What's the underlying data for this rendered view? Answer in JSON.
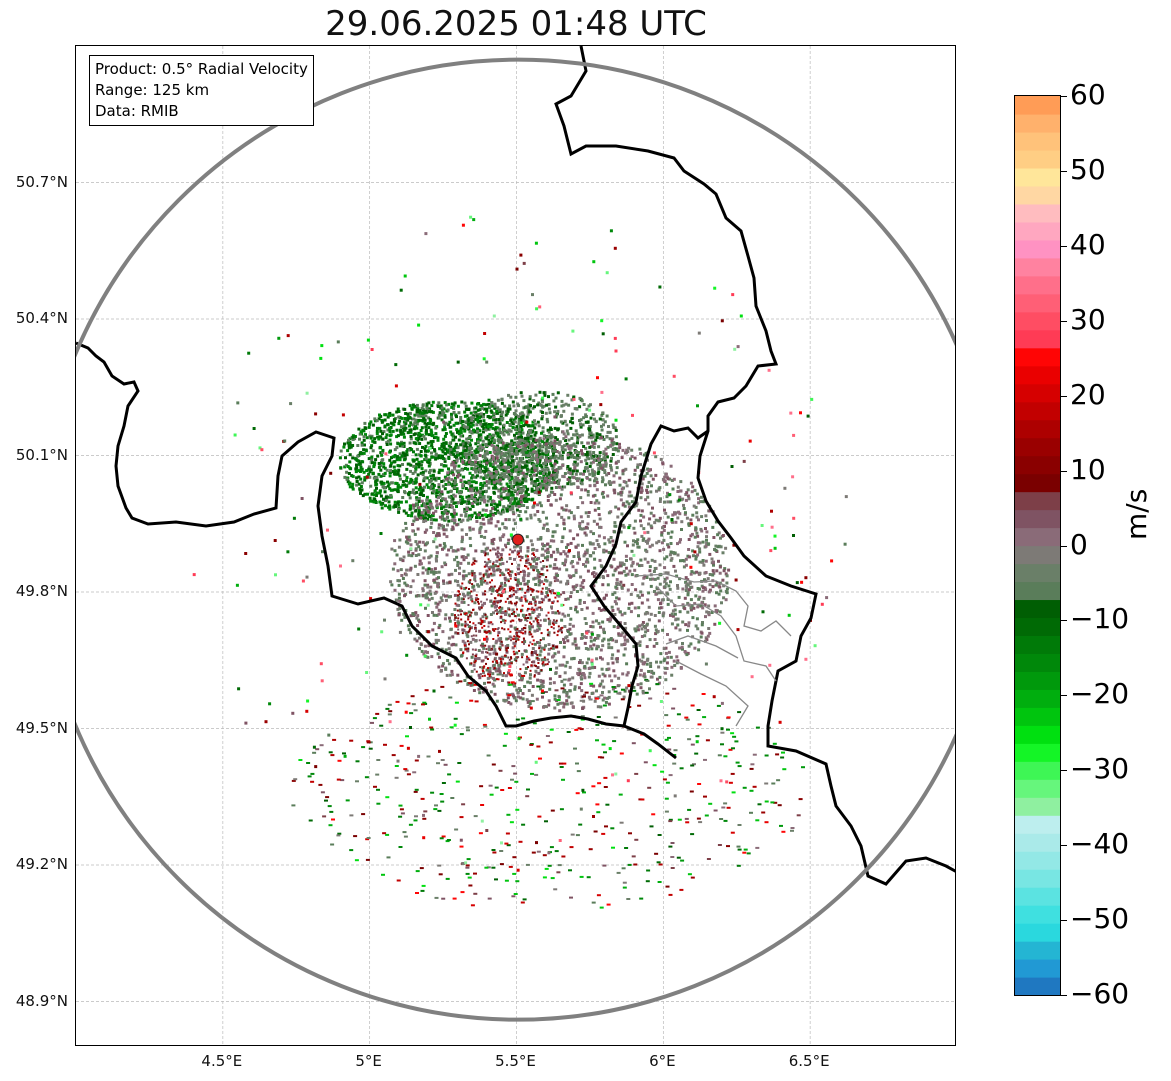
{
  "title": "29.06.2025 01:48 UTC",
  "info_box": {
    "product": "Product: 0.5° Radial Velocity",
    "range": "Range: 125 km",
    "source": "Data: RMIB"
  },
  "axes": {
    "lon_ticks": [
      "4.5°E",
      "5°E",
      "5.5°E",
      "6°E",
      "6.5°E"
    ],
    "lat_ticks": [
      "50.7°N",
      "50.4°N",
      "50.1°N",
      "49.8°N",
      "49.5°N",
      "49.2°N",
      "48.9°N"
    ],
    "lon_values": [
      4.5,
      5.0,
      5.5,
      6.0,
      6.5
    ],
    "lat_values": [
      50.7,
      50.4,
      50.1,
      49.8,
      49.5,
      49.2,
      48.9
    ],
    "lon_range": [
      4.0,
      7.0
    ],
    "lat_range": [
      48.8,
      51.0
    ]
  },
  "radar_site": {
    "lon": 5.505,
    "lat": 49.915,
    "color": "#e0201c"
  },
  "range_ring": {
    "radius_km": 125,
    "color": "#808080"
  },
  "colorbar": {
    "unit": "m/s",
    "range": [
      -60,
      60
    ],
    "tick_labels": [
      "60",
      "50",
      "40",
      "30",
      "20",
      "10",
      "0",
      "−10",
      "−20",
      "−30",
      "−40",
      "−50",
      "−60"
    ],
    "tick_values": [
      60,
      50,
      40,
      30,
      20,
      10,
      0,
      -10,
      -20,
      -30,
      -40,
      -50,
      -60
    ],
    "colors": [
      "#1f78c1",
      "#2199d4",
      "#24b5d3",
      "#2ad8de",
      "#3fe0e0",
      "#5be3e1",
      "#78e6e3",
      "#93e8e6",
      "#aaeae9",
      "#bdeeee",
      "#8ff0a0",
      "#66f67c",
      "#3ef655",
      "#14f526",
      "#00e010",
      "#00c50e",
      "#00ae0e",
      "#00990c",
      "#00880a",
      "#007a08",
      "#006a05",
      "#005e03",
      "#5a7d5a",
      "#6a7f68",
      "#7d7a76",
      "#8a6b78",
      "#7f5363",
      "#7d3f48",
      "#7a0000",
      "#8a0000",
      "#9a0000",
      "#ad0000",
      "#c20000",
      "#d60000",
      "#ea0000",
      "#ff0505",
      "#ff3b55",
      "#ff4d63",
      "#ff5f76",
      "#ff6f8a",
      "#ff82a0",
      "#ff92c2",
      "#ffa7c0",
      "#ffbcbf",
      "#ffd7a3",
      "#ffe69a",
      "#ffce84",
      "#ffc27a",
      "#ffb16c",
      "#ff9c56"
    ]
  }
}
